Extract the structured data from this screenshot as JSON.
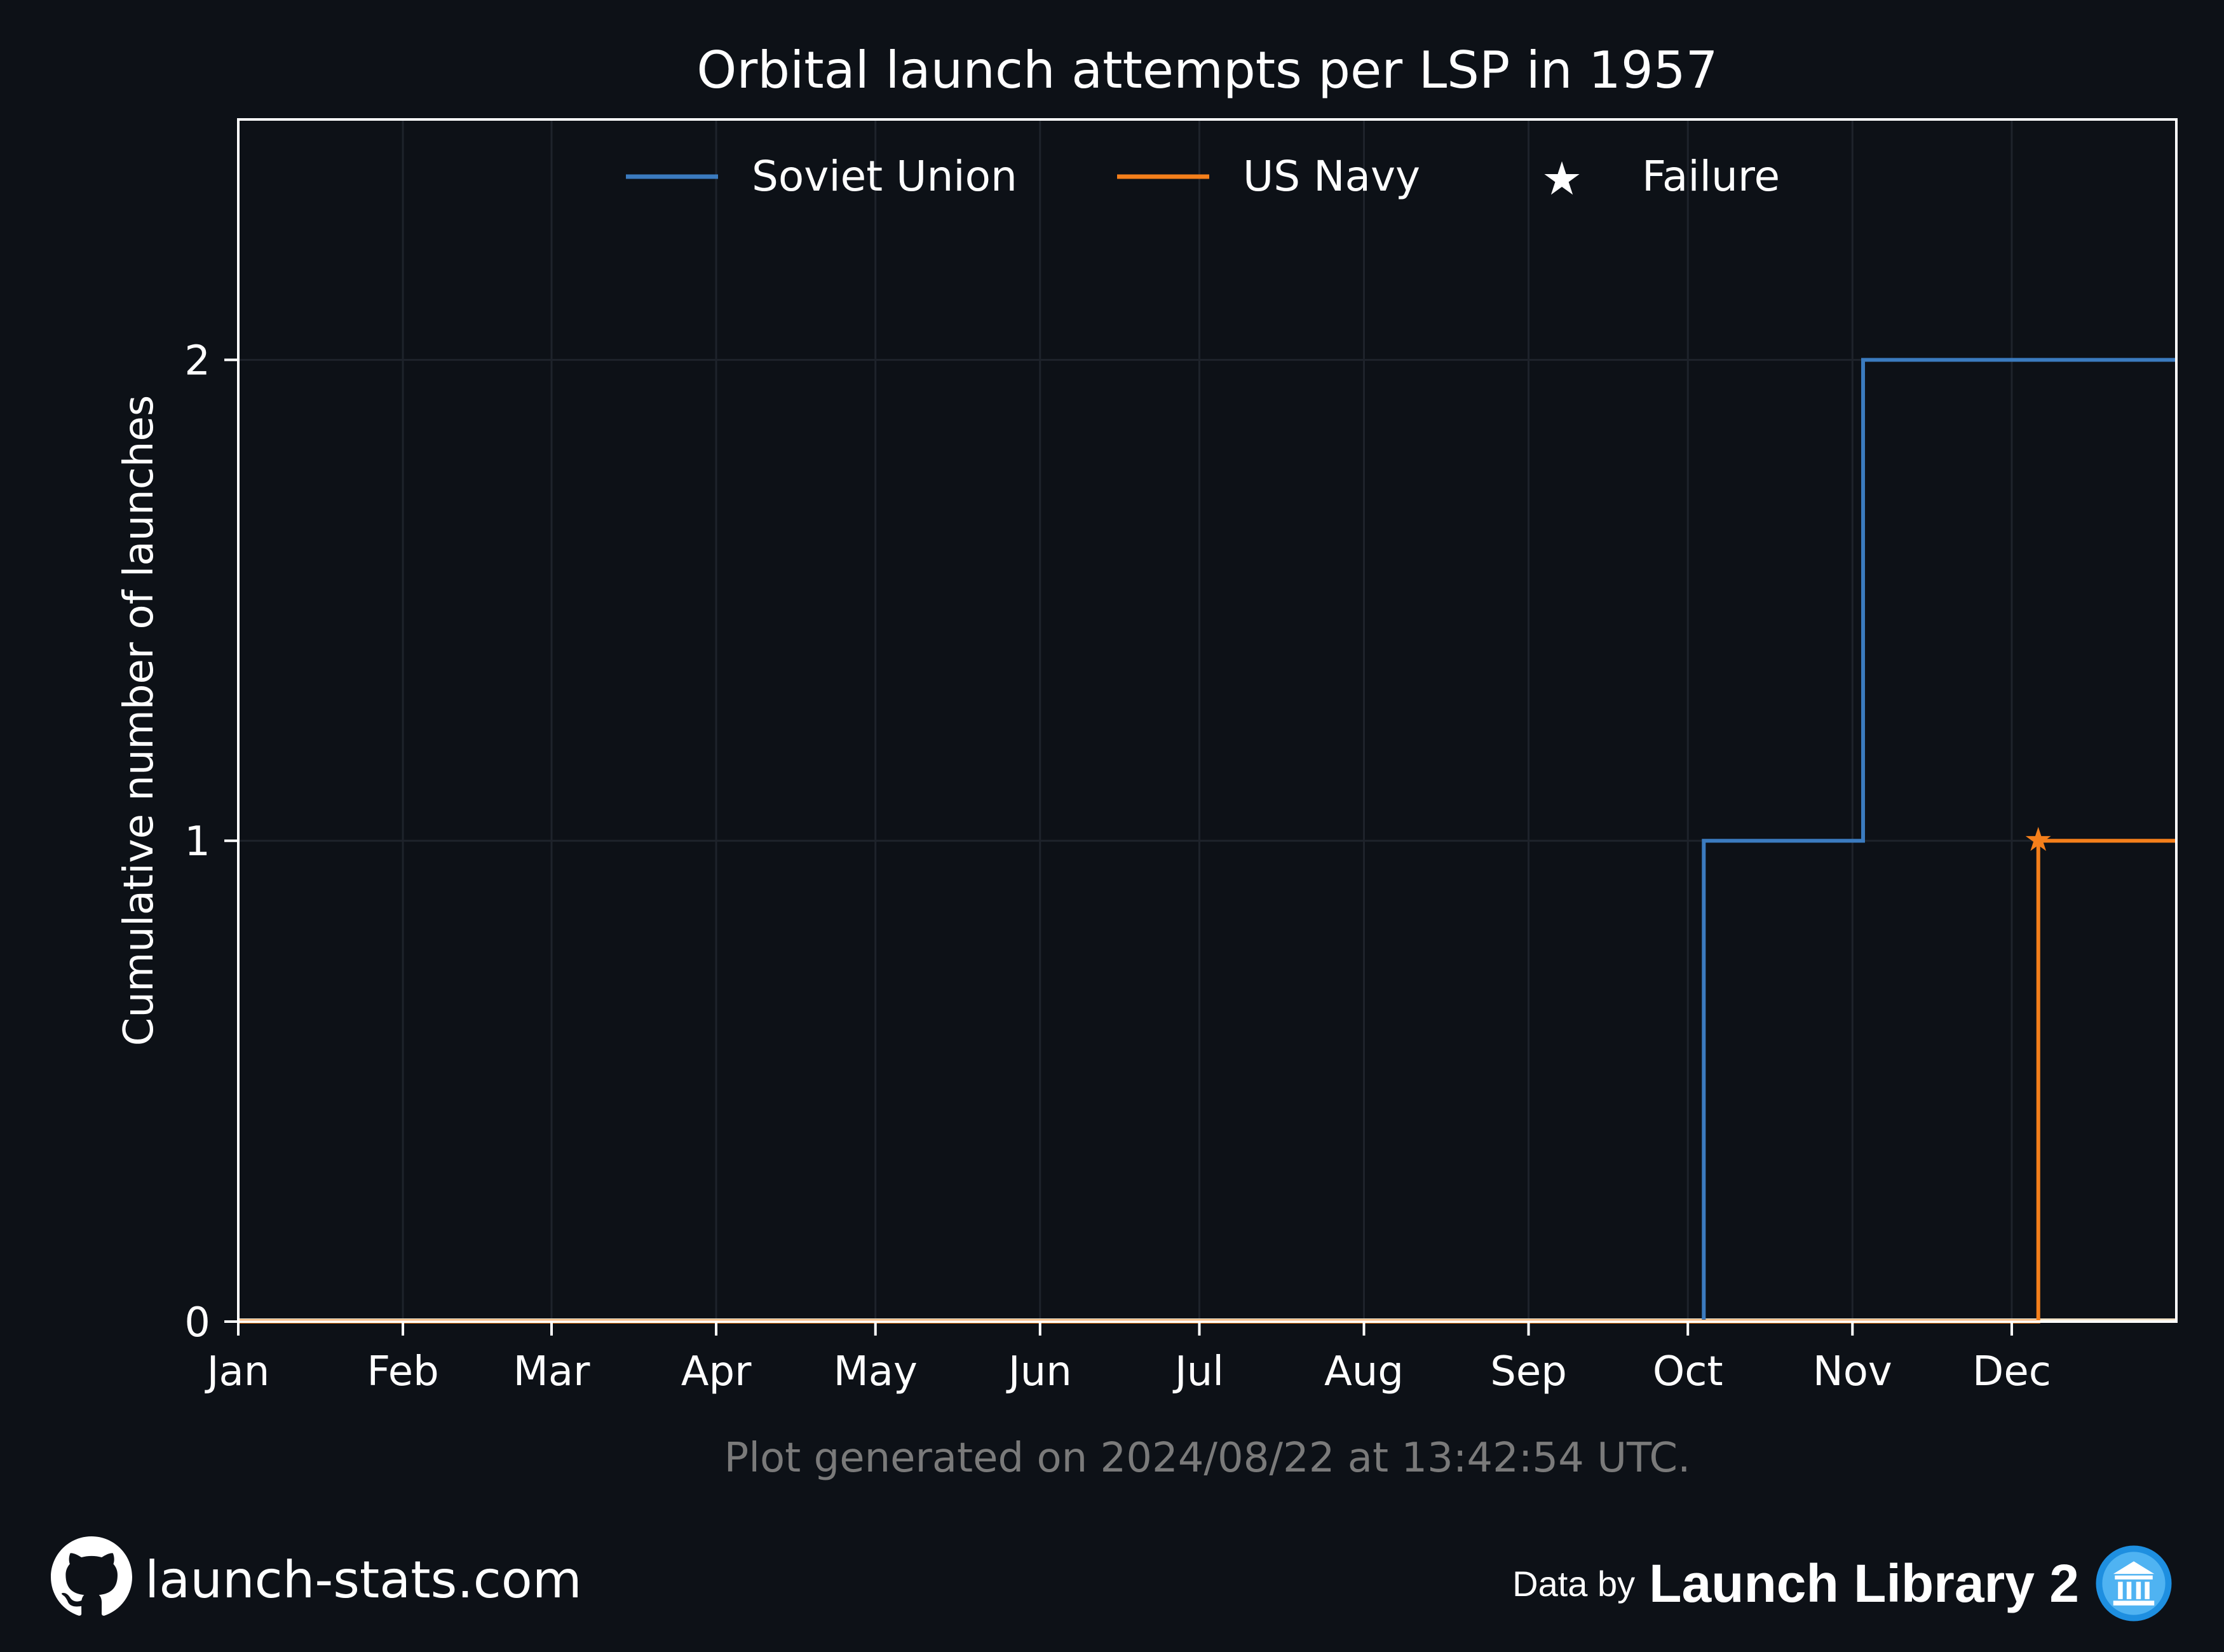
{
  "chart_data": {
    "type": "line",
    "step": true,
    "title": "Orbital launch attempts per LSP in 1957",
    "ylabel": "Cumulative number of launches",
    "xlabel": "",
    "x_axis": {
      "type": "date",
      "range": [
        "1957-01-01",
        "1958-01-01"
      ],
      "tick_dates": [
        "1957-01-01",
        "1957-02-01",
        "1957-03-01",
        "1957-04-01",
        "1957-05-01",
        "1957-06-01",
        "1957-07-01",
        "1957-08-01",
        "1957-09-01",
        "1957-10-01",
        "1957-11-01",
        "1957-12-01"
      ],
      "tick_labels": [
        "Jan",
        "Feb",
        "Mar",
        "Apr",
        "May",
        "Jun",
        "Jul",
        "Aug",
        "Sep",
        "Oct",
        "Nov",
        "Dec"
      ]
    },
    "y_axis": {
      "range": [
        0,
        2.5
      ],
      "ticks": [
        0,
        1,
        2
      ],
      "tick_labels": [
        "0",
        "1",
        "2"
      ]
    },
    "grid": true,
    "legend": {
      "placement": "top-center"
    },
    "series": [
      {
        "name": "Soviet Union",
        "color": "#3b7bbf",
        "points": [
          {
            "date": "1957-01-01",
            "value": 0
          },
          {
            "date": "1957-10-04",
            "value": 1
          },
          {
            "date": "1957-11-03",
            "value": 2
          },
          {
            "date": "1958-01-01",
            "value": 2
          }
        ]
      },
      {
        "name": "US Navy",
        "color": "#f47f1b",
        "points": [
          {
            "date": "1957-01-01",
            "value": 0
          },
          {
            "date": "1957-12-06",
            "value": 1
          },
          {
            "date": "1958-01-01",
            "value": 1
          }
        ],
        "failures": [
          {
            "date": "1957-12-06",
            "value": 1
          }
        ]
      }
    ],
    "legend_marker": {
      "label": "Failure",
      "symbol": "★"
    }
  },
  "footer": {
    "generated_note": "Plot generated on 2024/08/22 at 13:42:54 UTC.",
    "site": "launch-stats.com",
    "data_by": "Data by",
    "library": "Launch Library 2"
  },
  "colors": {
    "background": "#0d1117",
    "axes_frame": "#ffffff",
    "grid": "#1e232b",
    "note_text": "#7a7a7a"
  },
  "icons": {
    "site": "github-icon",
    "library": "library-icon"
  }
}
